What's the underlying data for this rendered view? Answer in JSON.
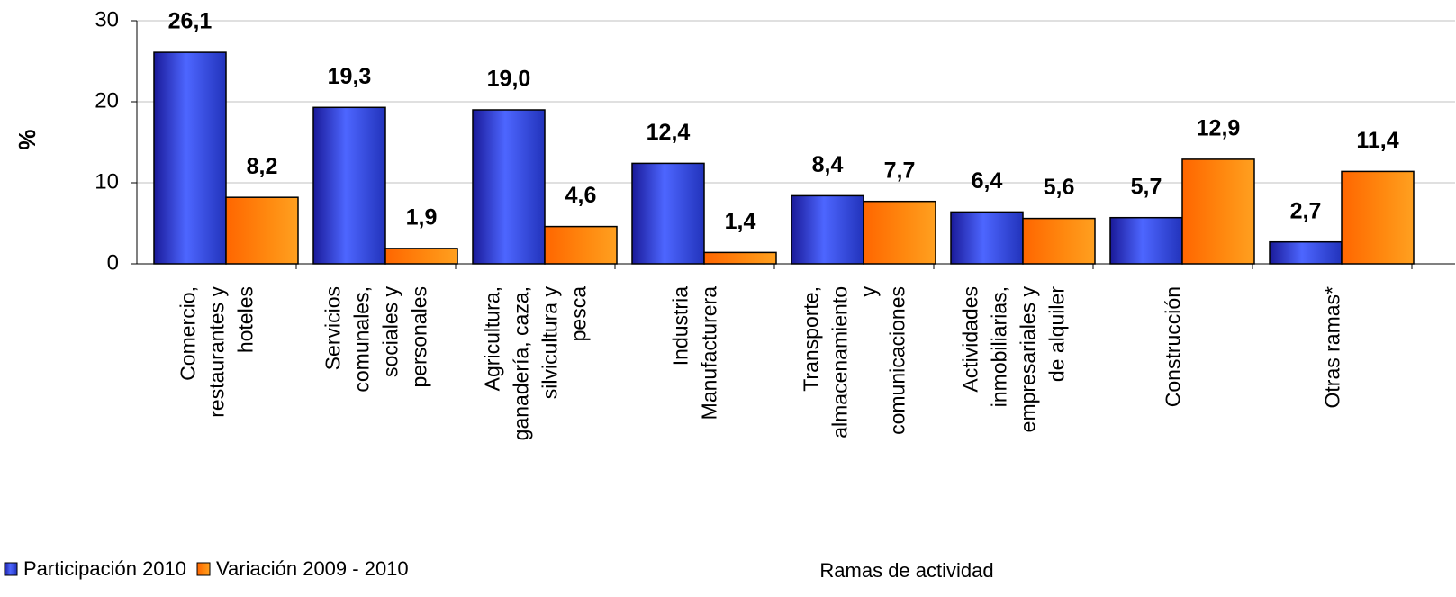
{
  "chart_data": {
    "type": "bar",
    "y_label": "%",
    "x_label": "Ramas de actividad",
    "categories": [
      "Comercio,\nrestaurantes y\nhoteles",
      "Servicios\ncomunales,\nsociales y\npersonales",
      "Agricultura,\nganadería, caza,\nsilvicultura y\npesca",
      "Industria\nManufacturera",
      "Transporte,\nalmacenamiento\ny\ncomunicaciones",
      "Actividades\ninmobiliarias,\nempresariales y\nde alquiler",
      "Construcción",
      "Otras ramas*"
    ],
    "series": [
      {
        "name": "Participación 2010",
        "color": "#3333cc",
        "label_color": "#1a1a80",
        "values": [
          26.1,
          19.3,
          19.0,
          12.4,
          8.4,
          6.4,
          5.7,
          2.7
        ],
        "value_labels": [
          "26,1",
          "19,3",
          "19,0",
          "12,4",
          "8,4",
          "6,4",
          "5,7",
          "2,7"
        ]
      },
      {
        "name": "Variación 2009 - 2010",
        "color": "#ff8000",
        "label_color": "#ff6600",
        "values": [
          8.2,
          1.9,
          4.6,
          1.4,
          7.7,
          5.6,
          12.9,
          11.4
        ],
        "value_labels": [
          "8,2",
          "1,9",
          "4,6",
          "1,4",
          "7,7",
          "5,6",
          "12,9",
          "11,4"
        ]
      }
    ],
    "ylim": [
      0,
      30
    ],
    "yticks": [
      0,
      10,
      20,
      30
    ],
    "grid": true,
    "legend": "bottom-left"
  }
}
